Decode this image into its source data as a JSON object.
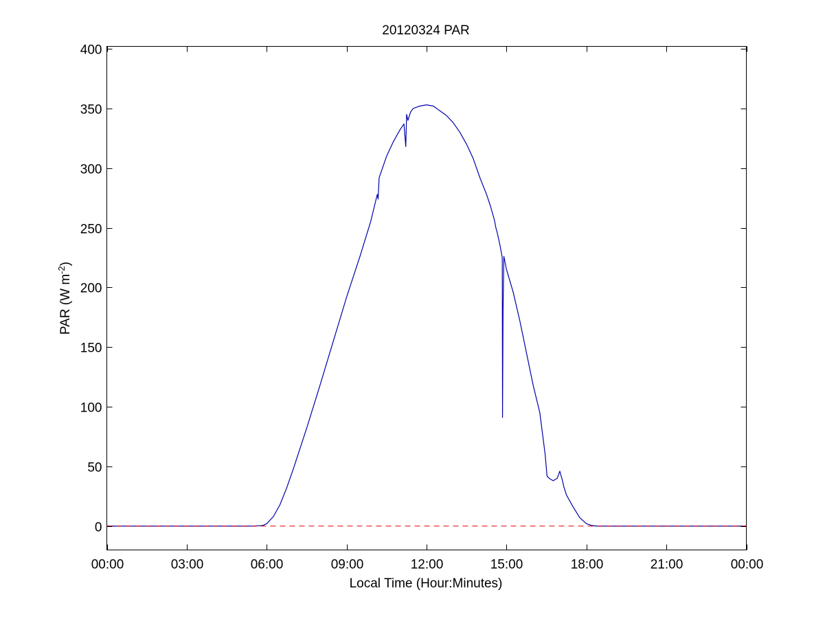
{
  "chart_data": {
    "type": "line",
    "title": "20120324 PAR",
    "xlabel": "Local Time (Hour:Minutes)",
    "ylabel": "PAR (W m",
    "ylabel_sup": "-2",
    "ylabel_end": ")",
    "xlim": [
      0,
      24
    ],
    "ylim": [
      -20,
      402
    ],
    "xticks": [
      0,
      3,
      6,
      9,
      12,
      15,
      18,
      21,
      24
    ],
    "xtick_labels": [
      "00:00",
      "03:00",
      "06:00",
      "09:00",
      "12:00",
      "15:00",
      "18:00",
      "21:00",
      "00:00"
    ],
    "yticks": [
      0,
      50,
      100,
      150,
      200,
      250,
      300,
      350,
      400
    ],
    "ytick_labels": [
      "0",
      "50",
      "100",
      "150",
      "200",
      "250",
      "300",
      "350",
      "400"
    ],
    "grid": false,
    "colors": {
      "series": "#0000aa",
      "reference": "#dd0000"
    },
    "series": [
      {
        "color": "#0000aa",
        "style": "solid",
        "x": [
          0,
          5.5,
          5.85,
          6.0,
          6.25,
          6.5,
          6.75,
          7.0,
          7.5,
          8.0,
          8.5,
          9.0,
          9.5,
          9.9,
          10.15,
          10.18,
          10.22,
          10.5,
          10.75,
          11.0,
          11.15,
          11.22,
          11.25,
          11.3,
          11.4,
          11.5,
          11.75,
          12.0,
          12.25,
          12.5,
          12.75,
          13.0,
          13.25,
          13.5,
          13.75,
          14.0,
          14.25,
          14.4,
          14.55,
          14.6,
          14.65,
          14.75,
          14.84,
          14.85,
          14.87,
          14.9,
          15.0,
          15.25,
          15.5,
          15.75,
          16.0,
          16.25,
          16.45,
          16.52,
          16.6,
          16.75,
          16.9,
          17.0,
          17.1,
          17.15,
          17.25,
          17.5,
          17.75,
          18.0,
          18.2,
          18.4,
          18.5,
          21.0,
          24.0
        ],
        "y": [
          0,
          0,
          0.5,
          2,
          8,
          18,
          32,
          48,
          82,
          118,
          155,
          192,
          226,
          255,
          278,
          274,
          292,
          310,
          322,
          332,
          337,
          318,
          345,
          340,
          347,
          350,
          352,
          353,
          352,
          348,
          344,
          338,
          330,
          320,
          308,
          292,
          278,
          268,
          256,
          250,
          246,
          236,
          225,
          91,
          180,
          226,
          215,
          196,
          172,
          145,
          118,
          95,
          60,
          42,
          40,
          38,
          40,
          46,
          38,
          33,
          26,
          16,
          7,
          2,
          0.5,
          0,
          0,
          0,
          0
        ]
      },
      {
        "color": "#dd0000",
        "style": "dashed",
        "x": [
          0,
          24
        ],
        "y": [
          0,
          0
        ]
      }
    ]
  }
}
